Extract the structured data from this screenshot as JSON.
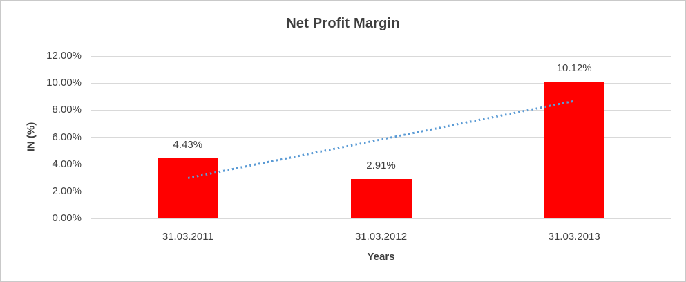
{
  "chart_data": {
    "type": "bar",
    "title": "Net Profit Margin",
    "ylabel": "IN (%)",
    "xlabel": "Years",
    "categories": [
      "31.03.2011",
      "31.03.2012",
      "31.03.2013"
    ],
    "values": [
      4.43,
      2.91,
      10.12
    ],
    "data_labels": [
      "4.43%",
      "2.91%",
      "10.12%"
    ],
    "yticks": [
      0,
      2,
      4,
      6,
      8,
      10,
      12
    ],
    "ytick_labels": [
      "0.00%",
      "2.00%",
      "4.00%",
      "6.00%",
      "8.00%",
      "10.00%",
      "12.00%"
    ],
    "ylim": [
      0,
      12
    ],
    "grid": true,
    "legend": "none",
    "bar_color": "#FF0000",
    "trendline": {
      "type": "linear",
      "style": "dotted",
      "color": "#5B9BD5",
      "start_value": 2.98,
      "end_value": 8.67
    }
  },
  "colors": {
    "title_text": "#3F3F3F",
    "axis_text": "#404040",
    "gridline": "#D9D9D9",
    "canvas_border": "#C9C9C9",
    "background": "#FFFFFF"
  }
}
